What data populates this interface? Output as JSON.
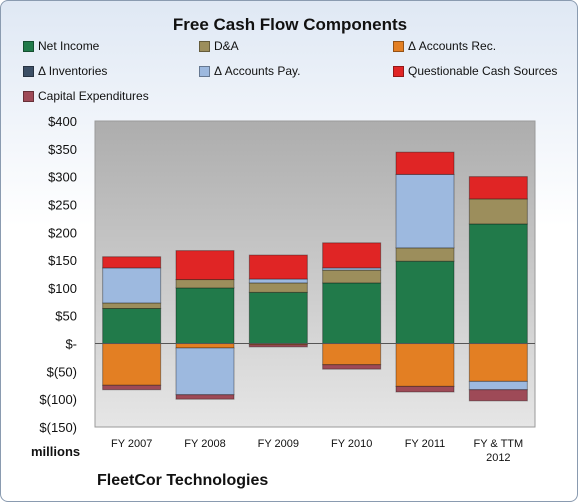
{
  "chart_data": {
    "type": "bar",
    "stacked": true,
    "title": "Free Cash Flow Components",
    "units": "millions",
    "categories": [
      [
        "FY 2007"
      ],
      [
        "FY 2008"
      ],
      [
        "FY 2009"
      ],
      [
        "FY 2010"
      ],
      [
        "FY 2011"
      ],
      [
        "FY & TTM",
        "2012"
      ]
    ],
    "ylim": [
      -150,
      400
    ],
    "yticks": [
      {
        "value": 400,
        "label": "$400"
      },
      {
        "value": 350,
        "label": "$350"
      },
      {
        "value": 300,
        "label": "$300"
      },
      {
        "value": 250,
        "label": "$250"
      },
      {
        "value": 200,
        "label": "$200"
      },
      {
        "value": 150,
        "label": "$150"
      },
      {
        "value": 100,
        "label": "$100"
      },
      {
        "value": 50,
        "label": "$50"
      },
      {
        "value": 0,
        "label": "$-"
      },
      {
        "value": -50,
        "label": "$(50)"
      },
      {
        "value": -100,
        "label": "$(100)"
      },
      {
        "value": -150,
        "label": "$(150)"
      }
    ],
    "grid": false,
    "legend_position": "top",
    "series": [
      {
        "name": "Net Income",
        "color": "#217a4a",
        "values": [
          63,
          100,
          92,
          109,
          148,
          215
        ]
      },
      {
        "name": "D&A",
        "color": "#9c8e5c",
        "values": [
          10,
          15,
          17,
          23,
          24,
          45
        ]
      },
      {
        "name": "Δ Accounts Rec.",
        "color": "#e37f23",
        "values": [
          -75,
          -8,
          -2,
          -38,
          -77,
          -68
        ]
      },
      {
        "name": "Δ Inventories",
        "color": "#3c4f66",
        "values": [
          0,
          0,
          0,
          0,
          0,
          0
        ]
      },
      {
        "name": "Δ Accounts Pay.",
        "color": "#9db9df",
        "values": [
          63,
          -84,
          7,
          4,
          132,
          -15
        ]
      },
      {
        "name": "Questionable Cash Sources",
        "color": "#e02525",
        "values": [
          20,
          52,
          43,
          45,
          40,
          40
        ]
      },
      {
        "name": "Capital Expenditures",
        "color": "#9e4a57",
        "values": [
          -8,
          -8,
          -4,
          -8,
          -10,
          -20
        ]
      }
    ]
  },
  "footer": {
    "units_label": "millions",
    "company": "FleetCor Technologies"
  }
}
